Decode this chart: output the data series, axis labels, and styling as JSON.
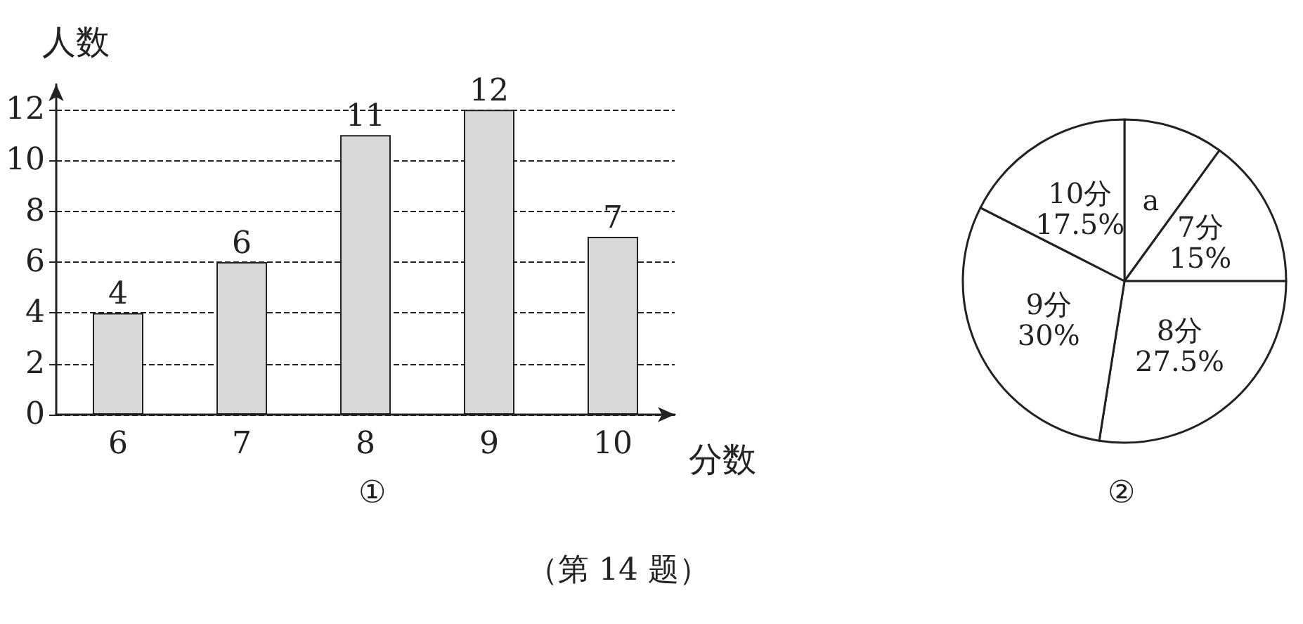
{
  "chart_data": [
    {
      "type": "bar",
      "xlabel": "分数",
      "ylabel": "人数",
      "categories": [
        "6",
        "7",
        "8",
        "9",
        "10"
      ],
      "values": [
        4,
        6,
        11,
        12,
        7
      ],
      "color": "#d9d9d9",
      "ylim": [
        0,
        13
      ],
      "yticks": [
        0,
        2,
        4,
        6,
        8,
        10,
        12
      ],
      "grid": "y",
      "data_labels": true,
      "legend": false,
      "annotations": [
        "①",
        "（第 14 题）"
      ]
    },
    {
      "type": "pie",
      "categories": [
        "a",
        "7分",
        "8分",
        "9分",
        "10分"
      ],
      "values": [
        10,
        15,
        27.5,
        30,
        17.5
      ],
      "colors": [
        "#ffffff",
        "#ffffff",
        "#ffffff",
        "#ffffff",
        "#ffffff"
      ],
      "value_labels": [
        null,
        "15%",
        "27.5%",
        "30%",
        "17.5%"
      ],
      "legend": false,
      "annotations": [
        "②"
      ]
    }
  ]
}
